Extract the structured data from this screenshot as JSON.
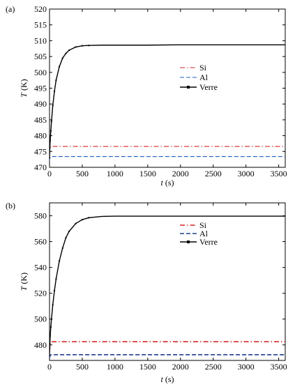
{
  "chart_data": [
    {
      "type": "line",
      "panel_label": "(a)",
      "xlabel_var": "t",
      "xlabel_unit": "(s)",
      "ylabel_var": "T",
      "ylabel_unit": "(K)",
      "xlim": [
        0,
        3600
      ],
      "ylim": [
        470,
        520
      ],
      "xticks": [
        0,
        500,
        1000,
        1500,
        2000,
        2500,
        3000,
        3500
      ],
      "yticks": [
        470,
        475,
        480,
        485,
        490,
        495,
        500,
        505,
        510,
        515,
        520
      ],
      "grid": false,
      "legend_position": "middle-right",
      "series": [
        {
          "name": "Si",
          "color": "#d62728",
          "style": "dashdot",
          "x": [
            0,
            5,
            10,
            20,
            30,
            40,
            60,
            3600
          ],
          "y": [
            474.0,
            475.5,
            476.2,
            476.5,
            476.6,
            476.6,
            476.6,
            476.6
          ]
        },
        {
          "name": "Al",
          "color": "#1f5fbf",
          "style": "dashed",
          "x": [
            0,
            5,
            10,
            20,
            30,
            60,
            3600
          ],
          "y": [
            472.0,
            473.0,
            473.3,
            473.4,
            473.4,
            473.4,
            473.4
          ]
        },
        {
          "name": "Verre",
          "color": "#000000",
          "style": "solid-marker",
          "x": [
            0,
            10,
            20,
            30,
            50,
            75,
            100,
            150,
            200,
            250,
            300,
            400,
            500,
            600,
            800,
            1000,
            1500,
            2000,
            2500,
            3000,
            3600
          ],
          "y": [
            473.0,
            478.5,
            481.5,
            484.5,
            489.5,
            494.0,
            497.5,
            501.8,
            504.5,
            506.0,
            507.0,
            508.0,
            508.4,
            508.5,
            508.6,
            508.6,
            508.6,
            508.7,
            508.7,
            508.7,
            508.7
          ]
        }
      ]
    },
    {
      "type": "line",
      "panel_label": "(b)",
      "xlabel_var": "t",
      "xlabel_unit": "(s)",
      "ylabel_var": "T",
      "ylabel_unit": "(K)",
      "xlim": [
        0,
        3600
      ],
      "ylim": [
        468,
        590
      ],
      "xticks": [
        0,
        500,
        1000,
        1500,
        2000,
        2500,
        3000,
        3500
      ],
      "yticks": [
        480,
        500,
        520,
        540,
        560,
        580
      ],
      "grid": false,
      "legend_position": "top-right",
      "series": [
        {
          "name": "Si",
          "color": "#d62728",
          "style": "dashdot",
          "x": [
            0,
            10,
            20,
            40,
            60,
            3600
          ],
          "y": [
            475.0,
            480.5,
            482.0,
            482.4,
            482.5,
            482.5
          ]
        },
        {
          "name": "Al",
          "color": "#1f3f8f",
          "style": "dashed",
          "x": [
            0,
            10,
            20,
            40,
            3600
          ],
          "y": [
            470.0,
            471.8,
            472.3,
            472.4,
            472.4
          ]
        },
        {
          "name": "Verre",
          "color": "#000000",
          "style": "solid-marker",
          "x": [
            0,
            10,
            20,
            30,
            50,
            75,
            100,
            150,
            200,
            250,
            300,
            400,
            500,
            600,
            800,
            1000,
            1500,
            2000,
            2500,
            3000,
            3600
          ],
          "y": [
            472.0,
            487.0,
            494.0,
            500.0,
            511.0,
            522.0,
            531.0,
            545.0,
            555.0,
            563.0,
            568.0,
            574.0,
            577.0,
            578.5,
            579.5,
            579.7,
            579.7,
            579.7,
            579.7,
            579.7,
            579.7
          ]
        }
      ]
    }
  ]
}
